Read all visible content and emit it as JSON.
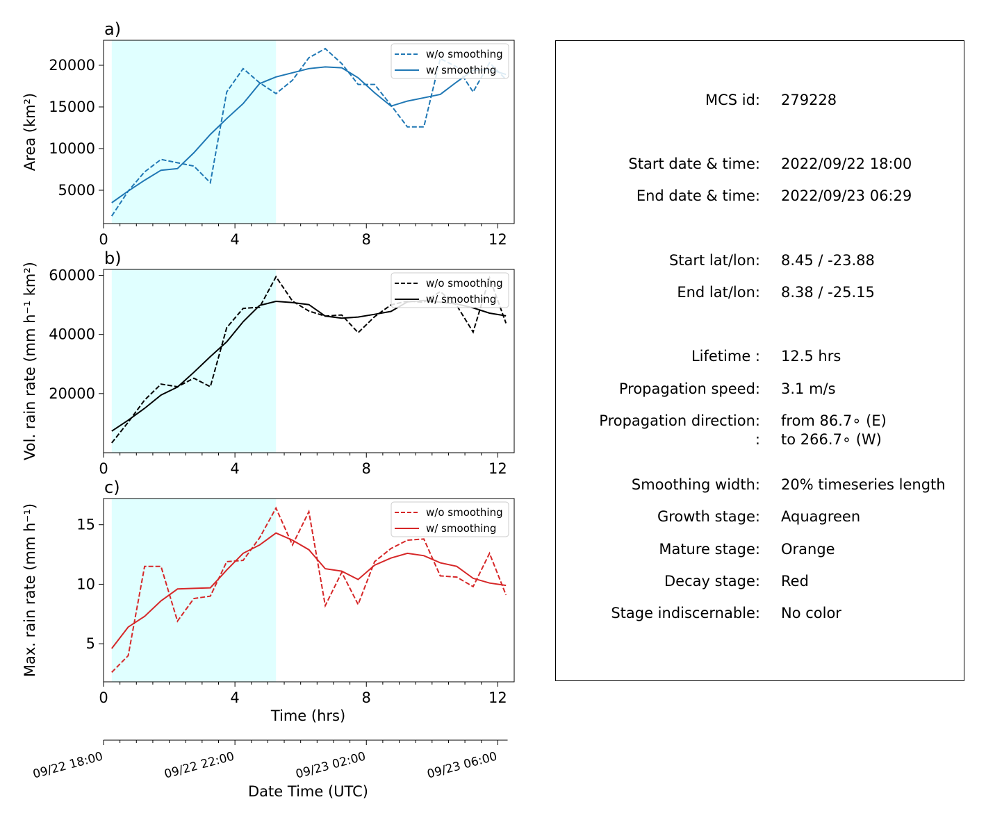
{
  "chart_data": [
    {
      "type": "line",
      "panel_label": "a)",
      "ylabel": "Area  (km²)",
      "xlim": [
        0,
        12.5
      ],
      "ylim": [
        1000,
        23000
      ],
      "xticks": [
        0,
        4,
        8,
        12
      ],
      "xtick_labels": [
        "0",
        "4",
        "8",
        "12"
      ],
      "yticks": [
        5000,
        10000,
        15000,
        20000
      ],
      "ytick_labels": [
        "5000",
        "10000",
        "15000",
        "20000"
      ],
      "shade_x": [
        0.25,
        5.25
      ],
      "legend": "top-right",
      "x": [
        0.25,
        0.75,
        1.25,
        1.75,
        2.25,
        2.75,
        3.25,
        3.75,
        4.25,
        4.75,
        5.25,
        5.75,
        6.25,
        6.75,
        7.25,
        7.75,
        8.25,
        8.75,
        9.25,
        9.75,
        10.25,
        10.75,
        11.25,
        11.75,
        12.25
      ],
      "series": [
        {
          "name": "w/o smoothing",
          "style": "dashed",
          "color": "#1f77b4",
          "values": [
            1900,
            4900,
            7200,
            8700,
            8300,
            7900,
            5900,
            16800,
            19600,
            17900,
            16600,
            18200,
            20900,
            22000,
            20200,
            17700,
            17700,
            15200,
            12600,
            12600,
            20800,
            19800,
            16800,
            20300,
            18300
          ]
        },
        {
          "name": "w/ smoothing",
          "style": "solid",
          "color": "#1f77b4",
          "values": [
            3500,
            4900,
            6200,
            7400,
            7600,
            9500,
            11700,
            13600,
            15400,
            17800,
            18600,
            19100,
            19600,
            19800,
            19700,
            18500,
            16700,
            15100,
            15700,
            16100,
            16500,
            18000,
            19400,
            19500,
            18900
          ]
        }
      ]
    },
    {
      "type": "line",
      "panel_label": "b)",
      "ylabel": "Vol. rain rate (mm h⁻¹ km²)",
      "xlim": [
        0,
        12.5
      ],
      "ylim": [
        0,
        62000
      ],
      "xticks": [
        0,
        4,
        8,
        12
      ],
      "xtick_labels": [
        "0",
        "4",
        "8",
        "12"
      ],
      "yticks": [
        20000,
        40000,
        60000
      ],
      "ytick_labels": [
        "20000",
        "40000",
        "60000"
      ],
      "shade_x": [
        0.25,
        5.25
      ],
      "legend": "top-right",
      "x": [
        0.25,
        0.75,
        1.25,
        1.75,
        2.25,
        2.75,
        3.25,
        3.75,
        4.25,
        4.75,
        5.25,
        5.75,
        6.25,
        6.75,
        7.25,
        7.75,
        8.25,
        8.75,
        9.25,
        9.75,
        10.25,
        10.75,
        11.25,
        11.75,
        12.25
      ],
      "series": [
        {
          "name": "w/o smoothing",
          "style": "dashed",
          "color": "#000000",
          "values": [
            3300,
            10300,
            17800,
            23200,
            22300,
            25200,
            22300,
            42300,
            48800,
            49200,
            59500,
            51300,
            47900,
            46200,
            46600,
            40600,
            46000,
            50000,
            51300,
            50900,
            54500,
            49800,
            40800,
            59200,
            43800
          ]
        },
        {
          "name": "w/ smoothing",
          "style": "solid",
          "color": "#000000",
          "values": [
            7300,
            11000,
            15000,
            19500,
            22200,
            27200,
            32500,
            37500,
            44300,
            49800,
            51200,
            50800,
            50100,
            46200,
            45500,
            45900,
            46800,
            47800,
            51000,
            51500,
            50900,
            50300,
            49000,
            47200,
            46300
          ]
        }
      ]
    },
    {
      "type": "line",
      "panel_label": "c)",
      "ylabel": "Max. rain rate  (mm h⁻¹)",
      "xlabel": "Time (hrs)",
      "xlim": [
        0,
        12.5
      ],
      "ylim": [
        1.8,
        17.2
      ],
      "xticks": [
        0,
        4,
        8,
        12
      ],
      "xtick_labels": [
        "0",
        "4",
        "8",
        "12"
      ],
      "yticks": [
        5,
        10,
        15
      ],
      "ytick_labels": [
        "5",
        "10",
        "15"
      ],
      "shade_x": [
        0.25,
        5.25
      ],
      "legend": "top-right",
      "x": [
        0.25,
        0.75,
        1.25,
        1.75,
        2.25,
        2.75,
        3.25,
        3.75,
        4.25,
        4.75,
        5.25,
        5.75,
        6.25,
        6.75,
        7.25,
        7.75,
        8.25,
        8.75,
        9.25,
        9.75,
        10.25,
        10.75,
        11.25,
        11.75,
        12.25
      ],
      "series": [
        {
          "name": "w/o smoothing",
          "style": "dashed",
          "color": "#d62728",
          "values": [
            2.6,
            4.0,
            11.5,
            11.5,
            6.9,
            8.8,
            9.0,
            11.9,
            12.0,
            13.9,
            16.4,
            13.3,
            16.1,
            8.2,
            11.0,
            8.3,
            11.9,
            13.0,
            13.7,
            13.8,
            10.7,
            10.6,
            9.8,
            12.6,
            9.1
          ]
        },
        {
          "name": "w/ smoothing",
          "style": "solid",
          "color": "#d62728",
          "values": [
            4.6,
            6.4,
            7.3,
            8.6,
            9.6,
            9.65,
            9.7,
            11.2,
            12.6,
            13.3,
            14.3,
            13.7,
            12.9,
            11.3,
            11.1,
            10.4,
            11.6,
            12.2,
            12.6,
            12.4,
            11.8,
            11.5,
            10.5,
            10.1,
            9.9
          ]
        }
      ]
    }
  ],
  "datetime_axis": {
    "label": "Date Time (UTC)",
    "major_hours": [
      0,
      4,
      8,
      12
    ],
    "labels": [
      "09/22 18:00",
      "09/22 22:00",
      "09/23 02:00",
      "09/23 06:00"
    ]
  },
  "info": {
    "rows": [
      {
        "label": "MCS id:",
        "value": "279228"
      },
      {
        "label": "Start date & time:",
        "value": "2022/09/22 18:00"
      },
      {
        "label": "End date & time:",
        "value": "2022/09/23 06:29"
      },
      {
        "label": "Start lat/lon:",
        "value": "8.45 / -23.88"
      },
      {
        "label": "End lat/lon:",
        "value": "8.38 / -25.15"
      },
      {
        "label": "Lifetime :",
        "value": "12.5 hrs"
      },
      {
        "label": "Propagation speed:",
        "value": "3.1 m/s"
      },
      {
        "label": "Propagation direction:",
        "value": "from  86.7∘ (E)"
      },
      {
        "label": ":",
        "value": "to   266.7∘ (W)"
      },
      {
        "label": "Smoothing width:",
        "value": "20% timeseries length"
      },
      {
        "label": "Growth stage:",
        "value": "Aquagreen"
      },
      {
        "label": "Mature stage:",
        "value": "Orange"
      },
      {
        "label": "Decay stage:",
        "value": "Red"
      },
      {
        "label": "Stage indiscernable:",
        "value": "No color"
      }
    ]
  },
  "colors": {
    "growth_shade": "#e0ffff",
    "area_line": "#1f77b4",
    "vol_line": "#000000",
    "max_line": "#d62728"
  }
}
